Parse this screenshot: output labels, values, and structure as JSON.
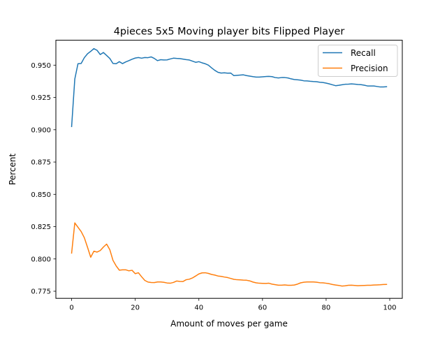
{
  "chart_data": {
    "type": "line",
    "title": "4pieces 5x5 Moving player bits Flipped Player",
    "xlabel": "Amount of moves per game",
    "ylabel": "Percent",
    "xlim": [
      -4.95,
      103.95
    ],
    "ylim": [
      0.7695,
      0.9693
    ],
    "xticks": [
      0,
      20,
      40,
      60,
      80,
      100
    ],
    "xtick_labels": [
      "0",
      "20",
      "40",
      "60",
      "80",
      "100"
    ],
    "yticks": [
      0.775,
      0.8,
      0.825,
      0.85,
      0.875,
      0.9,
      0.925,
      0.95
    ],
    "ytick_labels": [
      "0.775",
      "0.800",
      "0.825",
      "0.850",
      "0.875",
      "0.900",
      "0.925",
      "0.950"
    ],
    "grid": false,
    "legend_position": "top-right",
    "x": [
      0,
      1,
      2,
      3,
      4,
      5,
      6,
      7,
      8,
      9,
      10,
      11,
      12,
      13,
      14,
      15,
      16,
      17,
      18,
      19,
      20,
      21,
      22,
      23,
      24,
      25,
      26,
      27,
      28,
      29,
      30,
      31,
      32,
      33,
      34,
      35,
      36,
      37,
      38,
      39,
      40,
      41,
      42,
      43,
      44,
      45,
      46,
      47,
      48,
      49,
      50,
      51,
      52,
      53,
      54,
      55,
      56,
      57,
      58,
      59,
      60,
      61,
      62,
      63,
      64,
      65,
      66,
      67,
      68,
      69,
      70,
      71,
      72,
      73,
      74,
      75,
      76,
      77,
      78,
      79,
      80,
      81,
      82,
      83,
      84,
      85,
      86,
      87,
      88,
      89,
      90,
      91,
      92,
      93,
      94,
      95,
      96,
      97,
      98,
      99
    ],
    "series": [
      {
        "name": "Recall",
        "color": "#1f77b4",
        "values": [
          0.9025,
          0.9393,
          0.9511,
          0.9513,
          0.9558,
          0.9588,
          0.9607,
          0.9628,
          0.9615,
          0.9582,
          0.9598,
          0.9575,
          0.9552,
          0.9513,
          0.9511,
          0.9527,
          0.9512,
          0.9525,
          0.9535,
          0.9546,
          0.9555,
          0.9559,
          0.9554,
          0.9559,
          0.9558,
          0.9564,
          0.9552,
          0.9535,
          0.9542,
          0.954,
          0.9541,
          0.9548,
          0.9554,
          0.9552,
          0.9551,
          0.9547,
          0.9543,
          0.954,
          0.9531,
          0.9522,
          0.9527,
          0.9518,
          0.9511,
          0.95,
          0.9479,
          0.946,
          0.9445,
          0.9439,
          0.9441,
          0.9438,
          0.9439,
          0.9419,
          0.9421,
          0.9423,
          0.9425,
          0.9419,
          0.9415,
          0.9411,
          0.9408,
          0.9408,
          0.941,
          0.9412,
          0.9413,
          0.9411,
          0.9404,
          0.9401,
          0.9404,
          0.9404,
          0.9401,
          0.9394,
          0.9389,
          0.9387,
          0.9384,
          0.9379,
          0.9378,
          0.9375,
          0.9373,
          0.9372,
          0.9368,
          0.9366,
          0.9361,
          0.9355,
          0.9348,
          0.9341,
          0.9344,
          0.9348,
          0.9352,
          0.9353,
          0.9355,
          0.9353,
          0.935,
          0.9349,
          0.9345,
          0.9339,
          0.9339,
          0.9339,
          0.9335,
          0.9331,
          0.9331,
          0.9333
        ]
      },
      {
        "name": "Precision",
        "color": "#ff7f0e",
        "values": [
          0.8045,
          0.8279,
          0.8245,
          0.8212,
          0.8164,
          0.809,
          0.8013,
          0.806,
          0.8053,
          0.8065,
          0.8092,
          0.8115,
          0.8072,
          0.7989,
          0.7946,
          0.7913,
          0.7916,
          0.7916,
          0.7908,
          0.7912,
          0.7886,
          0.7893,
          0.7862,
          0.7834,
          0.7821,
          0.7818,
          0.7817,
          0.7822,
          0.7822,
          0.7819,
          0.7814,
          0.7812,
          0.7818,
          0.7829,
          0.7826,
          0.7825,
          0.7839,
          0.7843,
          0.7853,
          0.7868,
          0.7884,
          0.7892,
          0.7893,
          0.7888,
          0.788,
          0.7875,
          0.7868,
          0.7865,
          0.786,
          0.7856,
          0.7849,
          0.7842,
          0.7839,
          0.7838,
          0.7836,
          0.7835,
          0.783,
          0.7821,
          0.7815,
          0.7812,
          0.7811,
          0.781,
          0.7812,
          0.7805,
          0.7801,
          0.7797,
          0.7797,
          0.7799,
          0.7796,
          0.7796,
          0.7798,
          0.7805,
          0.7815,
          0.782,
          0.7822,
          0.7822,
          0.7822,
          0.782,
          0.7816,
          0.7815,
          0.7812,
          0.7808,
          0.7802,
          0.7798,
          0.7795,
          0.779,
          0.7792,
          0.7796,
          0.7797,
          0.7795,
          0.7793,
          0.7794,
          0.7795,
          0.7796,
          0.7796,
          0.7798,
          0.7799,
          0.78,
          0.7802,
          0.7803
        ]
      }
    ]
  }
}
